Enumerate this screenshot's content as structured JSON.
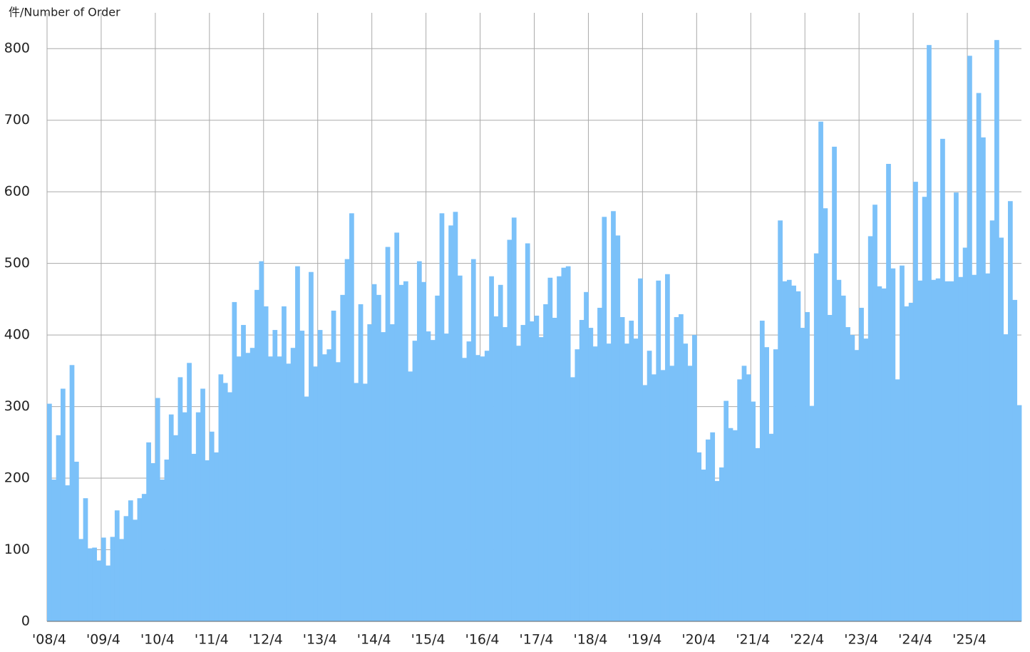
{
  "chart_data": {
    "type": "bar",
    "y_label": "件/Number of Order",
    "categories": [
      "'08/4",
      null,
      null,
      null,
      null,
      null,
      null,
      null,
      null,
      null,
      null,
      null,
      "'09/4",
      null,
      null,
      null,
      null,
      null,
      null,
      null,
      null,
      null,
      null,
      null,
      "'10/4",
      null,
      null,
      null,
      null,
      null,
      null,
      null,
      null,
      null,
      null,
      null,
      "'11/4",
      null,
      null,
      null,
      null,
      null,
      null,
      null,
      null,
      null,
      null,
      null,
      "'12/4",
      null,
      null,
      null,
      null,
      null,
      null,
      null,
      null,
      null,
      null,
      null,
      "'13/4",
      null,
      null,
      null,
      null,
      null,
      null,
      null,
      null,
      null,
      null,
      null,
      "'14/4",
      null,
      null,
      null,
      null,
      null,
      null,
      null,
      null,
      null,
      null,
      null,
      "'15/4",
      null,
      null,
      null,
      null,
      null,
      null,
      null,
      null,
      null,
      null,
      null,
      "'16/4",
      null,
      null,
      null,
      null,
      null,
      null,
      null,
      null,
      null,
      null,
      null,
      "'17/4",
      null,
      null,
      null,
      null,
      null,
      null,
      null,
      null,
      null,
      null,
      null,
      "'18/4",
      null,
      null,
      null,
      null,
      null,
      null,
      null,
      null,
      null,
      null,
      null,
      "'19/4",
      null,
      null,
      null,
      null,
      null,
      null,
      null,
      null,
      null,
      null,
      null,
      "'20/4",
      null,
      null,
      null,
      null,
      null,
      null,
      null,
      null,
      null,
      null,
      null,
      "'21/4",
      null,
      null,
      null,
      null,
      null,
      null,
      null,
      null,
      null,
      null,
      null,
      "'22/4",
      null,
      null,
      null,
      null,
      null,
      null,
      null,
      null,
      null,
      null,
      null,
      "'23/4",
      null,
      null,
      null,
      null,
      null,
      null,
      null,
      null,
      null,
      null,
      null,
      "'24/4",
      null,
      null,
      null,
      null,
      null,
      null,
      null,
      null,
      null,
      null,
      null,
      "'25/4",
      null,
      null,
      null,
      null,
      null,
      null,
      null,
      null,
      null,
      null,
      null
    ],
    "values": [
      304,
      198,
      260,
      325,
      190,
      358,
      223,
      115,
      172,
      102,
      103,
      85,
      117,
      78,
      118,
      155,
      115,
      147,
      169,
      142,
      172,
      178,
      250,
      221,
      312,
      198,
      226,
      289,
      260,
      341,
      292,
      361,
      234,
      292,
      325,
      225,
      265,
      236,
      345,
      333,
      320,
      446,
      370,
      414,
      375,
      382,
      463,
      503,
      440,
      370,
      407,
      370,
      440,
      360,
      382,
      496,
      406,
      314,
      488,
      356,
      407,
      373,
      380,
      434,
      362,
      456,
      506,
      570,
      333,
      443,
      332,
      415,
      471,
      456,
      404,
      523,
      415,
      543,
      470,
      475,
      349,
      392,
      503,
      474,
      405,
      393,
      455,
      570,
      402,
      553,
      572,
      483,
      368,
      391,
      506,
      372,
      370,
      378,
      482,
      426,
      470,
      411,
      533,
      564,
      385,
      414,
      528,
      419,
      427,
      397,
      443,
      480,
      424,
      482,
      494,
      496,
      341,
      380,
      421,
      460,
      410,
      384,
      438,
      565,
      388,
      573,
      539,
      425,
      388,
      420,
      395,
      479,
      330,
      378,
      345,
      476,
      351,
      485,
      357,
      425,
      429,
      388,
      357,
      400,
      236,
      212,
      254,
      264,
      196,
      215,
      308,
      270,
      267,
      338,
      357,
      345,
      307,
      242,
      420,
      383,
      262,
      380,
      560,
      475,
      477,
      469,
      461,
      410,
      432,
      301,
      514,
      698,
      577,
      428,
      663,
      477,
      455,
      411,
      400,
      379,
      438,
      395,
      538,
      582,
      468,
      465,
      639,
      493,
      338,
      497,
      440,
      445,
      614,
      476,
      593,
      805,
      477,
      479,
      674,
      475,
      475,
      599,
      481,
      522,
      790,
      484,
      738,
      676,
      486,
      560,
      812,
      536,
      401,
      587,
      449,
      302
    ],
    "color": "#7bc1f9",
    "ylim": [
      0,
      850
    ],
    "yticks": [
      0,
      100,
      200,
      300,
      400,
      500,
      600,
      700,
      800
    ],
    "grid": true
  }
}
